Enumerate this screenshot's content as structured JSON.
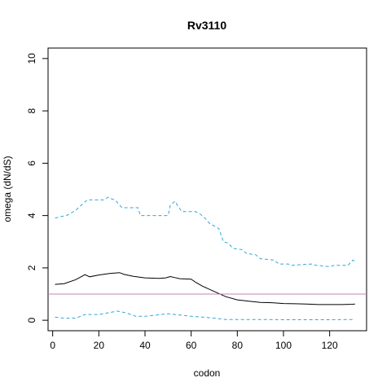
{
  "chart_data": {
    "type": "line",
    "title": "Rv3110",
    "xlabel": "codon",
    "ylabel": "omega (dN/dS)",
    "xlim": [
      -2,
      136
    ],
    "ylim": [
      -0.4,
      10.4
    ],
    "x_ticks": [
      0,
      20,
      40,
      60,
      80,
      100,
      120
    ],
    "y_ticks": [
      0,
      2,
      4,
      6,
      8,
      10
    ],
    "grid": false,
    "reference_line": {
      "y": 1,
      "color": "#c080c0"
    },
    "series": [
      {
        "style": "solid",
        "color": "#000000",
        "x": [
          1,
          5,
          10,
          14,
          16,
          20,
          25,
          29,
          31,
          35,
          40,
          46,
          49,
          51,
          53,
          55,
          60,
          62,
          65,
          70,
          75,
          80,
          85,
          90,
          95,
          100,
          105,
          110,
          115,
          120,
          125,
          130,
          131
        ],
        "y": [
          1.37,
          1.4,
          1.55,
          1.74,
          1.66,
          1.73,
          1.79,
          1.82,
          1.75,
          1.68,
          1.62,
          1.6,
          1.62,
          1.67,
          1.63,
          1.59,
          1.57,
          1.45,
          1.3,
          1.1,
          0.9,
          0.78,
          0.73,
          0.68,
          0.67,
          0.64,
          0.63,
          0.62,
          0.6,
          0.6,
          0.6,
          0.61,
          0.62
        ]
      },
      {
        "style": "dashed",
        "color": "#2fa8dc",
        "x": [
          1,
          3,
          6,
          10,
          13,
          15,
          22,
          24,
          25,
          27,
          30,
          37,
          38,
          50,
          51,
          53,
          54,
          56,
          62,
          64,
          66,
          68,
          72,
          74,
          76,
          78,
          82,
          84,
          88,
          90,
          96,
          98,
          102,
          104,
          112,
          114,
          120,
          122,
          128,
          130,
          131
        ],
        "y": [
          3.9,
          3.95,
          4.0,
          4.2,
          4.45,
          4.6,
          4.6,
          4.7,
          4.65,
          4.6,
          4.3,
          4.3,
          4.0,
          4.0,
          4.4,
          4.55,
          4.4,
          4.15,
          4.15,
          4.05,
          3.9,
          3.7,
          3.5,
          3.0,
          2.95,
          2.75,
          2.7,
          2.55,
          2.5,
          2.35,
          2.3,
          2.15,
          2.15,
          2.1,
          2.15,
          2.1,
          2.05,
          2.1,
          2.1,
          2.3,
          2.25
        ]
      },
      {
        "style": "dashed",
        "color": "#2fa8dc",
        "x": [
          1,
          5,
          10,
          14,
          20,
          25,
          28,
          32,
          36,
          40,
          45,
          50,
          55,
          60,
          65,
          70,
          75,
          80,
          90,
          100,
          110,
          120,
          131
        ],
        "y": [
          0.12,
          0.08,
          0.08,
          0.22,
          0.22,
          0.3,
          0.35,
          0.28,
          0.15,
          0.15,
          0.2,
          0.25,
          0.2,
          0.15,
          0.12,
          0.08,
          0.03,
          0.03,
          0.03,
          0.02,
          0.02,
          0.02,
          0.03
        ]
      }
    ]
  }
}
